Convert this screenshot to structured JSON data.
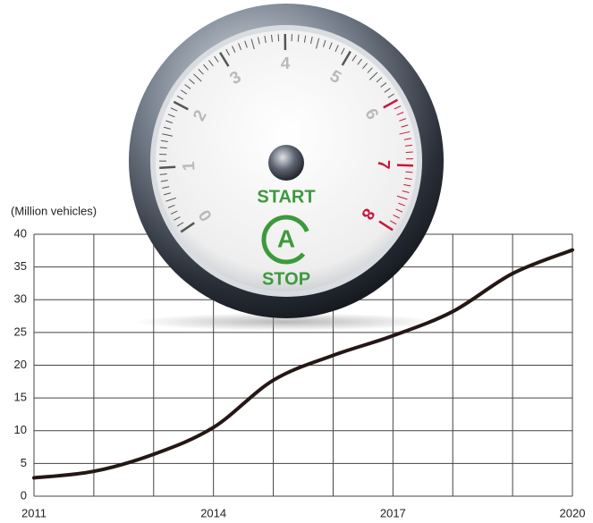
{
  "chart_data": {
    "type": "line",
    "y_axis_label": "(Million vehicles)",
    "x": [
      2011,
      2012,
      2013,
      2014,
      2015,
      2016,
      2017,
      2018,
      2019,
      2020
    ],
    "values": [
      2.8,
      3.8,
      6.4,
      10.5,
      17.7,
      21.5,
      24.5,
      28.2,
      34,
      37.6
    ],
    "color": "#231815",
    "xlim": [
      2011,
      2020
    ],
    "xticks": [
      2011,
      2014,
      2017,
      2020
    ],
    "x_minor_ticks": [
      2012,
      2013,
      2015,
      2016,
      2018,
      2019
    ],
    "ylim": [
      0,
      40
    ],
    "yticks": [
      0,
      5,
      10,
      15,
      20,
      25,
      30,
      35,
      40
    ],
    "grid": true
  },
  "gauge": {
    "dial_labels": [
      "0",
      "1",
      "2",
      "3",
      "4",
      "5",
      "6",
      "7",
      "8"
    ],
    "start": "START",
    "icon": "A",
    "stop": "STOP"
  }
}
